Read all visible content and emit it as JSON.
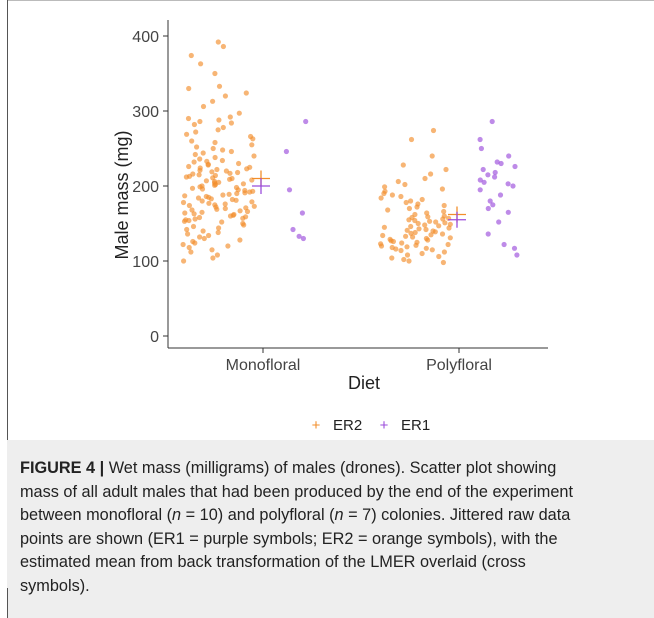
{
  "chart_data": {
    "type": "scatter",
    "xlabel": "Diet",
    "ylabel": "Male mass (mg)",
    "categories": [
      "Monofloral",
      "Polyfloral"
    ],
    "ylim": [
      0,
      400
    ],
    "yticks": [
      0,
      100,
      200,
      300,
      400
    ],
    "grid": false,
    "legend_position": "bottom",
    "colors": {
      "ER2": "#f28e2b",
      "ER1": "#9b4ddb"
    },
    "series": [
      {
        "name": "ER2",
        "points": {
          "Monofloral": [
            392,
            386,
            374,
            363,
            350,
            333,
            330,
            324,
            320,
            313,
            306,
            297,
            292,
            290,
            288,
            286,
            284,
            282,
            278,
            275,
            272,
            269,
            266,
            263,
            260,
            258,
            255,
            252,
            250,
            248,
            246,
            244,
            242,
            240,
            238,
            236,
            234,
            233,
            232,
            230,
            229,
            228,
            226,
            225,
            224,
            223,
            222,
            221,
            220,
            219,
            218,
            217,
            216,
            215,
            214,
            213,
            212,
            211,
            210,
            209,
            208,
            207,
            206,
            205,
            204,
            203,
            202,
            201,
            200,
            199,
            198,
            197,
            196,
            195,
            194,
            193,
            192,
            191,
            190,
            189,
            188,
            187,
            186,
            185,
            184,
            183,
            182,
            181,
            180,
            179,
            178,
            177,
            176,
            175,
            174,
            173,
            172,
            171,
            170,
            169,
            168,
            167,
            166,
            165,
            164,
            163,
            162,
            161,
            160,
            159,
            158,
            157,
            156,
            155,
            154,
            153,
            152,
            150,
            148,
            146,
            144,
            142,
            140,
            138,
            136,
            134,
            132,
            130,
            128,
            126,
            124,
            122,
            120,
            118,
            115,
            112,
            108,
            104,
            100
          ],
          "Polyfloral": [
            274,
            262,
            240,
            228,
            222,
            216,
            210,
            206,
            202,
            199,
            196,
            193,
            190,
            188,
            186,
            184,
            182,
            180,
            178,
            176,
            174,
            172,
            170,
            168,
            166,
            164,
            162,
            160,
            159,
            158,
            157,
            156,
            155,
            154,
            153,
            152,
            151,
            150,
            149,
            148,
            147,
            146,
            145,
            144,
            143,
            142,
            141,
            140,
            139,
            138,
            137,
            136,
            135,
            134,
            133,
            132,
            131,
            130,
            129,
            128,
            127,
            126,
            125,
            124,
            123,
            122,
            121,
            120,
            119,
            118,
            117,
            116,
            115,
            114,
            112,
            110,
            108,
            106,
            104,
            102,
            100,
            98
          ]
        },
        "mean": {
          "Monofloral": 210,
          "Polyfloral": 162
        }
      },
      {
        "name": "ER1",
        "points": {
          "Monofloral": [
            286,
            246,
            195,
            164,
            142,
            133,
            130
          ],
          "Polyfloral": [
            286,
            262,
            250,
            240,
            232,
            230,
            226,
            222,
            218,
            215,
            212,
            208,
            205,
            203,
            200,
            195,
            188,
            180,
            175,
            170,
            165,
            152,
            136,
            122,
            117,
            108
          ]
        },
        "mean": {
          "Monofloral": 200,
          "Polyfloral": 155
        }
      }
    ]
  },
  "caption": {
    "label": "FIGURE 4 |",
    "line1": "Wet mass (milligrams) of males (drones). Scatter plot showing",
    "line2": "mass of all adult males that had been produced by the end of the experiment",
    "line3a": "between monofloral (",
    "n_symbol": "n",
    "line3b": " = 10) and polyfloral (",
    "line3c": " = 7) colonies. Jittered raw data",
    "line4": "points are shown (ER1 = purple symbols; ER2 = orange symbols), with the",
    "line5": "estimated mean from back transformation of the LMER overlaid (cross",
    "line6": "symbols)."
  }
}
